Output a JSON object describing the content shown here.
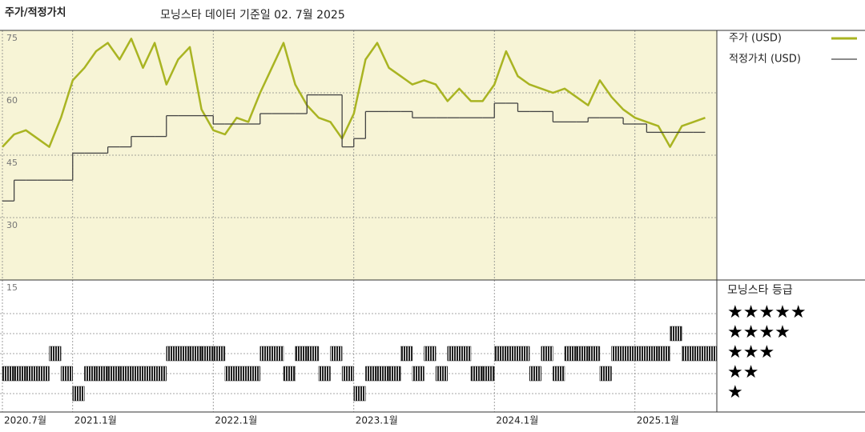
{
  "chart_data": [
    {
      "type": "line",
      "title": "주가/적정가치",
      "subtitle": "모닝스타 데이터 기준일 02. 7월 2025",
      "x": [
        "2020-07",
        "2020-08",
        "2020-09",
        "2020-10",
        "2020-11",
        "2020-12",
        "2021-01",
        "2021-02",
        "2021-03",
        "2021-04",
        "2021-05",
        "2021-06",
        "2021-07",
        "2021-08",
        "2021-09",
        "2021-10",
        "2021-11",
        "2021-12",
        "2022-01",
        "2022-02",
        "2022-03",
        "2022-04",
        "2022-05",
        "2022-06",
        "2022-07",
        "2022-08",
        "2022-09",
        "2022-10",
        "2022-11",
        "2022-12",
        "2023-01",
        "2023-02",
        "2023-03",
        "2023-04",
        "2023-05",
        "2023-06",
        "2023-07",
        "2023-08",
        "2023-09",
        "2023-10",
        "2023-11",
        "2023-12",
        "2024-01",
        "2024-02",
        "2024-03",
        "2024-04",
        "2024-05",
        "2024-06",
        "2024-07",
        "2024-08",
        "2024-09",
        "2024-10",
        "2024-11",
        "2024-12",
        "2025-01",
        "2025-02",
        "2025-03",
        "2025-04",
        "2025-05",
        "2025-06",
        "2025-07"
      ],
      "series": [
        {
          "name": "주가 (USD)",
          "color": "#a9b422",
          "step": false,
          "values": [
            47,
            50,
            51,
            49,
            47,
            54,
            63,
            66,
            70,
            72,
            68,
            73,
            66,
            72,
            62,
            68,
            71,
            56,
            51,
            50,
            54,
            53,
            60,
            66,
            72,
            62,
            57,
            54,
            53,
            49,
            55,
            68,
            72,
            66,
            64,
            62,
            63,
            62,
            58,
            61,
            58,
            58,
            62,
            70,
            64,
            62,
            61,
            60,
            61,
            59,
            57,
            63,
            59,
            56,
            54,
            53,
            52,
            47,
            52,
            53,
            54
          ]
        },
        {
          "name": "적정가치 (USD)",
          "color": "#444444",
          "step": true,
          "values": [
            34,
            39,
            39,
            39,
            39,
            39,
            45.5,
            45.5,
            45.5,
            47,
            47,
            49.5,
            49.5,
            49.5,
            54.5,
            54.5,
            54.5,
            54.5,
            52.5,
            52.5,
            52.5,
            52.5,
            55,
            55,
            55,
            55,
            59.5,
            59.5,
            59.5,
            47,
            49,
            55.5,
            55.5,
            55.5,
            55.5,
            54,
            54,
            54,
            54,
            54,
            54,
            54,
            57.5,
            57.5,
            55.5,
            55.5,
            55.5,
            53,
            53,
            53,
            54,
            54,
            54,
            52.5,
            52.5,
            50.5,
            50.5,
            50.5,
            50.5,
            50.5,
            50.5
          ]
        }
      ],
      "ylim": [
        15,
        75
      ],
      "yticks": [
        15,
        30,
        45,
        60,
        75
      ],
      "grid": true,
      "xticks": [
        {
          "value": "2020-07",
          "label": "2020.7월"
        },
        {
          "value": "2021-01",
          "label": "2021.1월"
        },
        {
          "value": "2022-01",
          "label": "2022.1월"
        },
        {
          "value": "2023-01",
          "label": "2023.1월"
        },
        {
          "value": "2024-01",
          "label": "2024.1월"
        },
        {
          "value": "2025-01",
          "label": "2025.1월"
        }
      ]
    },
    {
      "type": "rating",
      "title": "모닝스타 등급",
      "levels": [
        "★★★★★",
        "★★★★",
        "★★★",
        "★★",
        "★"
      ],
      "values": [
        2,
        2,
        2,
        2,
        3,
        2,
        1,
        2,
        2,
        2,
        2,
        2,
        2,
        2,
        3,
        3,
        3,
        3,
        3,
        2,
        2,
        2,
        3,
        3,
        2,
        3,
        3,
        2,
        3,
        2,
        1,
        2,
        2,
        2,
        3,
        2,
        3,
        2,
        3,
        3,
        2,
        2,
        3,
        3,
        3,
        2,
        3,
        2,
        3,
        3,
        3,
        2,
        3,
        3,
        3,
        3,
        3,
        4,
        3,
        3,
        3
      ],
      "color": "#222222"
    }
  ]
}
